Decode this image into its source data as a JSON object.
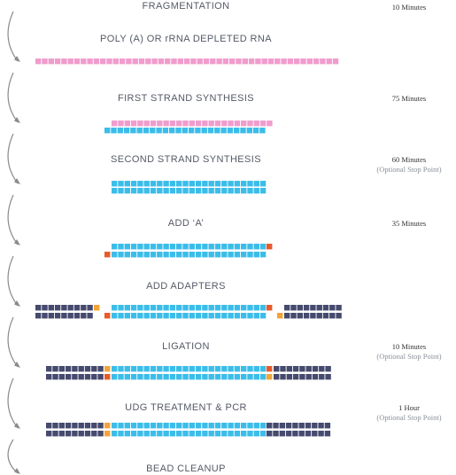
{
  "colors": {
    "rna": "#f09ccd",
    "cdna": "#3bbde9",
    "a_base": "#e85a2a",
    "adapter_t": "#f2a33a",
    "adapter": "#454a6e",
    "arrow": "#8a8a8a"
  },
  "icons": {
    "step_arrow": "curved-arrow-icon"
  },
  "steps": [
    {
      "title": "FRAGMENTATION",
      "time": "10 Minutes",
      "note": ""
    },
    {
      "title": "POLY (A) OR rRNA DEPLETED RNA",
      "time": "",
      "note": ""
    },
    {
      "title": "FIRST STRAND SYNTHESIS",
      "time": "75 Minutes",
      "note": ""
    },
    {
      "title": "SECOND STRAND SYNTHESIS",
      "time": "60 Minutes",
      "note": "(Optional Stop Point)"
    },
    {
      "title": "ADD ‘A’",
      "time": "35 Minutes",
      "note": ""
    },
    {
      "title": "ADD ADAPTERS",
      "time": "",
      "note": ""
    },
    {
      "title": "LIGATION",
      "time": "10 Minutes",
      "note": "(Optional Stop Point)"
    },
    {
      "title": "UDG TREATMENT & PCR",
      "time": "1 Hour",
      "note": "(Optional Stop Point)"
    },
    {
      "title": "BEAD CLEANUP",
      "time": "",
      "note": ""
    }
  ]
}
